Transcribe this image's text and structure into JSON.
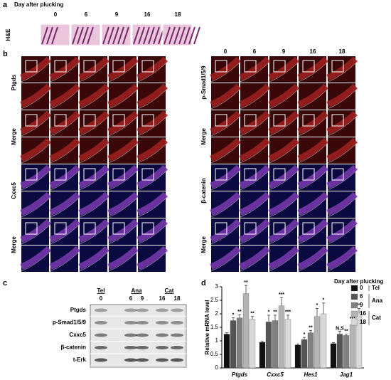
{
  "panel_a": {
    "label": "a",
    "title": "Day after plucking",
    "days": [
      "0",
      "6",
      "9",
      "16",
      "18"
    ],
    "stain": "H&E"
  },
  "panel_b": {
    "label": "b",
    "left_rows": [
      "Ptgds",
      "Merge",
      "Cxxc5",
      "Merge"
    ],
    "right_days": [
      "0",
      "6",
      "9",
      "16",
      "18"
    ],
    "right_rows": [
      "p-Smad1/5/9",
      "Merge",
      "β-catenin",
      "Merge"
    ]
  },
  "panel_c": {
    "label": "c",
    "groups": [
      "Tel",
      "Ana",
      "Cat"
    ],
    "days": [
      "0",
      "6",
      "9",
      "16",
      "18"
    ],
    "rows": [
      "Ptgds",
      "p-Smad1/5/9",
      "Cxxc5",
      "β-catenin",
      "t-Erk"
    ]
  },
  "panel_d": {
    "label": "d"
  },
  "chart_data": {
    "type": "bar",
    "y_label": "Relative mRNA level",
    "legend_title": "Day after plucking",
    "legend_groups": [
      "Tel",
      "Ana",
      "Cat"
    ],
    "categories": [
      "Ptgds",
      "Cxxc5",
      "Hes1",
      "Jag1"
    ],
    "series": [
      {
        "name": "0",
        "color": "#111111",
        "values": [
          1.25,
          0.95,
          0.85,
          0.9
        ],
        "errors": [
          0.05,
          0.03,
          0.04,
          0.03
        ]
      },
      {
        "name": "6",
        "color": "#555555",
        "values": [
          1.75,
          1.7,
          1.05,
          1.25
        ],
        "errors": [
          0.1,
          0.25,
          0.08,
          0.1
        ],
        "annotations": [
          "*",
          "*",
          "*",
          "N,S"
        ]
      },
      {
        "name": "9",
        "color": "#808080",
        "values": [
          1.85,
          1.75,
          1.3,
          1.2
        ],
        "errors": [
          0.12,
          0.2,
          0.08,
          0.05
        ],
        "annotations": [
          "**",
          "**",
          "**",
          "**"
        ]
      },
      {
        "name": "16",
        "color": "#b4b4b4",
        "values": [
          2.75,
          2.3,
          1.9,
          1.6
        ],
        "errors": [
          0.3,
          0.3,
          0.3,
          0.1
        ],
        "annotations": [
          "**",
          "***",
          "*",
          "***"
        ]
      },
      {
        "name": "18",
        "color": "#d9d9d9",
        "values": [
          1.8,
          1.8,
          2.0,
          2.05
        ],
        "errors": [
          0.1,
          0.15,
          0.4,
          0.15
        ],
        "annotations": [
          "**",
          "***",
          "*",
          "**"
        ]
      }
    ],
    "ylim": [
      0,
      3
    ],
    "yticks": [
      0,
      0.5,
      1,
      1.5,
      2,
      2.5,
      3
    ]
  }
}
